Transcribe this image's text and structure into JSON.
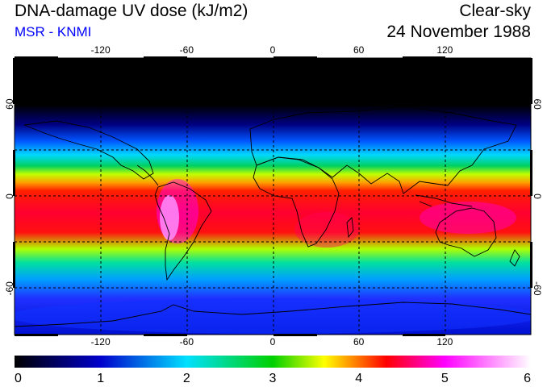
{
  "header": {
    "title": "DNA-damage UV dose (kJ/m2)",
    "subtitle": "MSR - KNMI",
    "condition": "Clear-sky",
    "date": "24 November 1988"
  },
  "map": {
    "projection": "equirectangular",
    "lon_range": [
      -180,
      180
    ],
    "lat_range": [
      -90,
      90
    ],
    "lon_ticks": [
      -120,
      -60,
      0,
      60,
      120
    ],
    "lat_ticks": [
      60,
      0,
      -60
    ],
    "gridlines": "dashed",
    "coastlines": true
  },
  "colorbar": {
    "min": 0,
    "max": 6,
    "ticks": [
      "0",
      "1",
      "2",
      "3",
      "4",
      "5",
      "6"
    ],
    "colors": [
      "#000000",
      "#0000cc",
      "#00e0ff",
      "#00d000",
      "#ffff00",
      "#ff0000",
      "#ff00ff",
      "#ffffff"
    ]
  }
}
